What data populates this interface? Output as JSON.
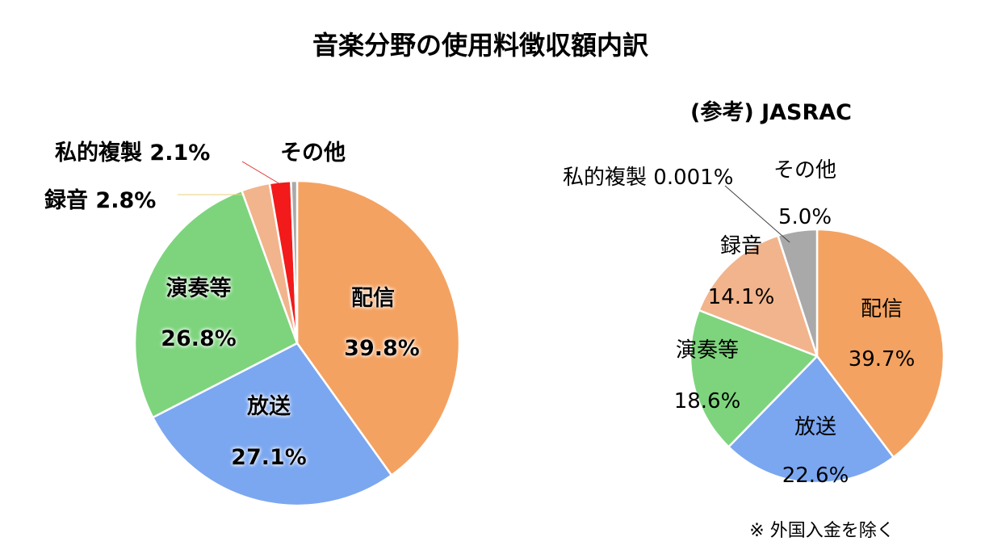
{
  "title": "音楽分野の使用料徴収額内訳",
  "footnote": "※ 外国入金を除く",
  "chart_data": [
    {
      "type": "pie",
      "title": "",
      "slices": [
        {
          "label": "配信",
          "value": 39.8,
          "value_label": "39.8%",
          "color": "#F4A261"
        },
        {
          "label": "放送",
          "value": 27.1,
          "value_label": "27.1%",
          "color": "#7BA7F0"
        },
        {
          "label": "演奏等",
          "value": 26.8,
          "value_label": "26.8%",
          "color": "#7DD47D"
        },
        {
          "label": "録音",
          "value": 2.8,
          "value_label": "2.8%",
          "color": "#F2B48C"
        },
        {
          "label": "私的複製",
          "value": 2.1,
          "value_label": "2.1%",
          "color": "#F21A1A"
        },
        {
          "label": "その他",
          "value": 0.6,
          "value_label": "",
          "color": "#A9A9A9"
        }
      ]
    },
    {
      "type": "pie",
      "title": "(参考) JASRAC",
      "slices": [
        {
          "label": "配信",
          "value": 39.7,
          "value_label": "39.7%",
          "color": "#F4A261"
        },
        {
          "label": "放送",
          "value": 22.6,
          "value_label": "22.6%",
          "color": "#7BA7F0"
        },
        {
          "label": "演奏等",
          "value": 18.6,
          "value_label": "18.6%",
          "color": "#7DD47D"
        },
        {
          "label": "録音",
          "value": 14.1,
          "value_label": "14.1%",
          "color": "#F2B48C"
        },
        {
          "label": "私的複製",
          "value": 0.001,
          "value_label": "0.001%",
          "color": "#F21A1A"
        },
        {
          "label": "その他",
          "value": 5.0,
          "value_label": "5.0%",
          "color": "#A9A9A9"
        }
      ]
    }
  ]
}
